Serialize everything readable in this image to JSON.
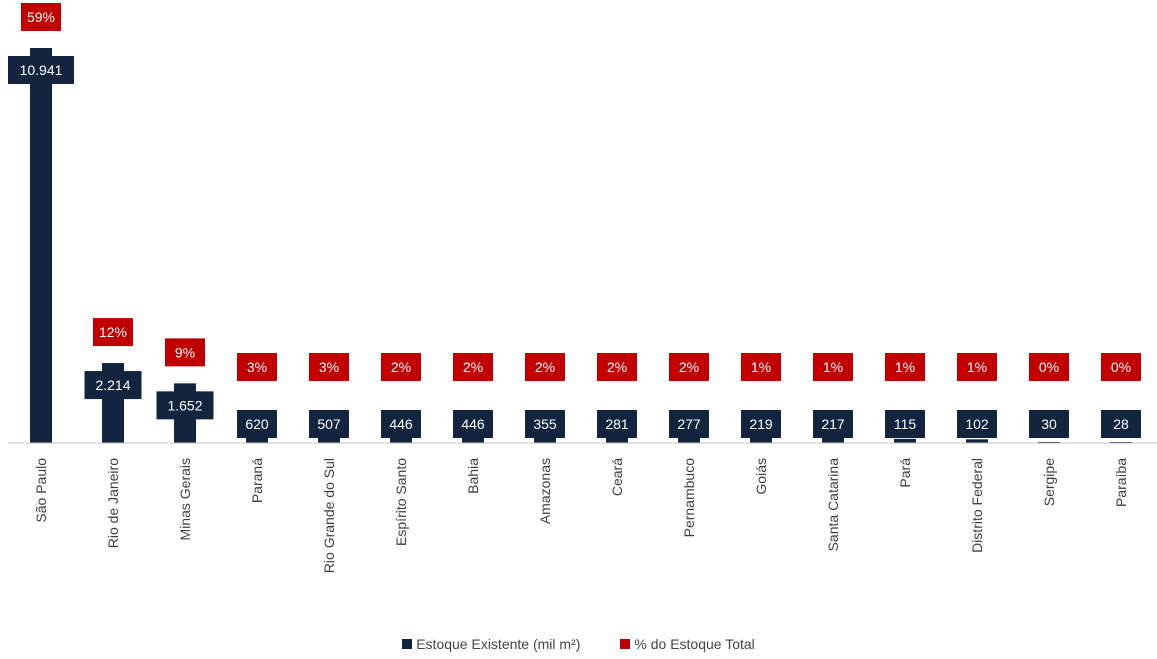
{
  "chart_data": {
    "type": "bar",
    "categories": [
      "São Paulo",
      "Rio de Janeiro",
      "Minas Gerais",
      "Paraná",
      "Rio Grande do Sul",
      "Espírito Santo",
      "Bahia",
      "Amazonas",
      "Ceará",
      "Pernambuco",
      "Goiás",
      "Santa Catarina",
      "Pará",
      "Distrito Federal",
      "Sergipe",
      "Paraíba"
    ],
    "series": [
      {
        "name": "Estoque Existente (mil m²)",
        "values": [
          10941,
          2214,
          1652,
          620,
          507,
          446,
          446,
          355,
          281,
          277,
          219,
          217,
          115,
          102,
          30,
          28
        ],
        "labels": [
          "10.941",
          "2.214",
          "1.652",
          "620",
          "507",
          "446",
          "446",
          "355",
          "281",
          "277",
          "219",
          "217",
          "115",
          "102",
          "30",
          "28"
        ],
        "color": "#13243F"
      },
      {
        "name": "% do Estoque Total",
        "values": [
          59,
          12,
          9,
          3,
          3,
          2,
          2,
          2,
          2,
          2,
          1,
          1,
          1,
          1,
          0,
          0
        ],
        "labels": [
          "59%",
          "12%",
          "9%",
          "3%",
          "3%",
          "2%",
          "2%",
          "2%",
          "2%",
          "2%",
          "1%",
          "1%",
          "1%",
          "1%",
          "0%",
          "0%"
        ],
        "color": "#C00000"
      }
    ],
    "ylim": [
      0,
      10941
    ],
    "grid": false,
    "legend": "bottom-center"
  }
}
